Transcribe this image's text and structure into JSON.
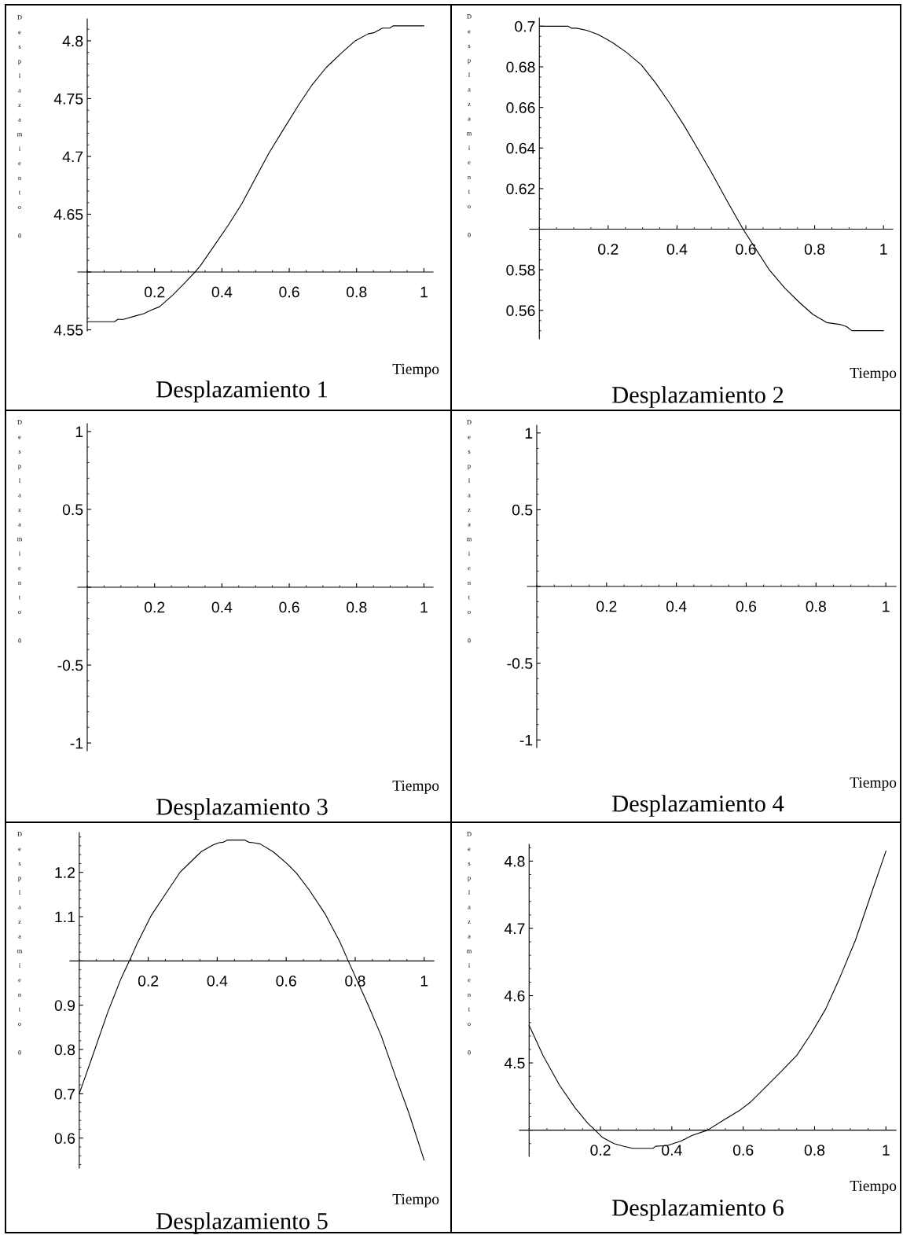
{
  "chart_data": [
    {
      "type": "line",
      "title": "Desplazamiento 1",
      "xlabel": "Tiempo",
      "ylabel": "Desplazamiento θ",
      "x": [
        0,
        0.081,
        0.091,
        0.108,
        0.143,
        0.168,
        0.19,
        0.215,
        0.254,
        0.288,
        0.32,
        0.335,
        0.373,
        0.42,
        0.459,
        0.501,
        0.54,
        0.582,
        0.629,
        0.668,
        0.71,
        0.757,
        0.796,
        0.834,
        0.851,
        0.877,
        0.898,
        0.909,
        1
      ],
      "series": [
        {
          "color": "#000000",
          "values": [
            4.557,
            4.557,
            4.559,
            4.559,
            4.562,
            4.564,
            4.567,
            4.57,
            4.58,
            4.59,
            4.6,
            4.605,
            4.621,
            4.641,
            4.659,
            4.682,
            4.703,
            4.723,
            4.745,
            4.762,
            4.777,
            4.79,
            4.8,
            4.806,
            4.807,
            4.811,
            4.811,
            4.813,
            4.813
          ]
        }
      ],
      "xlim": [
        -0.028,
        1.027
      ],
      "ylim": [
        4.549,
        4.819
      ],
      "xticks": [
        0.2,
        0.4,
        0.6,
        0.8,
        1
      ],
      "yticks": [
        4.55,
        {
          "value": 4.6,
          "label": null
        },
        4.65,
        4.7,
        4.75,
        4.8
      ]
    },
    {
      "type": "line",
      "title": "Desplazamiento 2",
      "xlabel": "Tiempo",
      "ylabel": "Desplazamiento θ",
      "x": [
        0,
        0.083,
        0.094,
        0.108,
        0.137,
        0.17,
        0.212,
        0.254,
        0.296,
        0.338,
        0.379,
        0.421,
        0.459,
        0.5,
        0.542,
        0.592,
        0.63,
        0.668,
        0.713,
        0.755,
        0.795,
        0.835,
        0.876,
        0.893,
        0.908,
        1
      ],
      "series": [
        {
          "color": "#000000",
          "values": [
            0.7,
            0.7,
            0.699,
            0.699,
            0.698,
            0.696,
            0.692,
            0.687,
            0.681,
            0.672,
            0.662,
            0.651,
            0.64,
            0.628,
            0.615,
            0.6,
            0.59,
            0.58,
            0.571,
            0.564,
            0.558,
            0.554,
            0.553,
            0.552,
            0.55,
            0.55
          ]
        }
      ],
      "xlim": [
        -0.028,
        1.027
      ],
      "ylim": [
        0.546,
        0.704
      ],
      "xticks": [
        0.2,
        0.4,
        0.6,
        0.8,
        1
      ],
      "yticks": [
        0.56,
        0.58,
        {
          "value": 0.6,
          "label": null
        },
        0.62,
        0.64,
        0.66,
        0.68,
        0.7
      ]
    },
    {
      "type": "line",
      "title": "Desplazamiento 3",
      "xlabel": "Tiempo",
      "ylabel": "Desplazamiento θ",
      "xlim": [
        -0.028,
        1.027
      ],
      "ylim": [
        -1.05,
        1.05
      ],
      "xticks": [
        0.2,
        0.4,
        0.6,
        0.8,
        1
      ],
      "yticks": [
        -1,
        -0.5,
        {
          "value": 0,
          "label": null
        },
        0.5,
        1
      ]
    },
    {
      "type": "line",
      "title": "Desplazamiento 4",
      "xlabel": "Tiempo",
      "ylabel": "Desplazamiento θ",
      "xlim": [
        -0.027,
        1.029
      ],
      "ylim": [
        -1.05,
        1.05
      ],
      "xticks": [
        0.2,
        0.4,
        0.6,
        0.8,
        1
      ],
      "yticks": [
        -1,
        -0.5,
        {
          "value": 0,
          "label": null
        },
        0.5,
        1
      ]
    },
    {
      "type": "line",
      "title": "Desplazamiento 5",
      "xlabel": "Tiempo",
      "ylabel": "Desplazamiento θ",
      "x": [
        0,
        0.038,
        0.083,
        0.121,
        0.15,
        0.167,
        0.209,
        0.25,
        0.292,
        0.317,
        0.354,
        0.388,
        0.405,
        0.417,
        0.43,
        0.48,
        0.492,
        0.505,
        0.525,
        0.563,
        0.605,
        0.63,
        0.667,
        0.713,
        0.755,
        0.78,
        0.813,
        0.838,
        0.876,
        0.917,
        0.955,
        1
      ],
      "series": [
        {
          "color": "#000000",
          "values": [
            0.7,
            0.784,
            0.885,
            0.96,
            1.008,
            1.038,
            1.103,
            1.151,
            1.2,
            1.219,
            1.247,
            1.262,
            1.267,
            1.268,
            1.273,
            1.273,
            1.268,
            1.267,
            1.264,
            1.246,
            1.218,
            1.198,
            1.16,
            1.106,
            1.044,
            1.0,
            0.943,
            0.9,
            0.83,
            0.739,
            0.658,
            0.55
          ]
        }
      ],
      "xlim": [
        -0.027,
        1.028
      ],
      "ylim": [
        0.532,
        1.29
      ],
      "xticks": [
        0.2,
        0.4,
        0.6,
        0.8,
        1
      ],
      "yticks": [
        0.6,
        0.7,
        0.8,
        0.9,
        {
          "value": 1,
          "label": null
        },
        1.1,
        1.2
      ]
    },
    {
      "type": "line",
      "title": "Desplazamiento 6",
      "xlabel": "Tiempo",
      "ylabel": "Desplazamiento θ",
      "x": [
        0,
        0.04,
        0.085,
        0.129,
        0.165,
        0.185,
        0.206,
        0.238,
        0.266,
        0.29,
        0.347,
        0.355,
        0.387,
        0.427,
        0.456,
        0.5,
        0.548,
        0.589,
        0.621,
        0.661,
        0.706,
        0.75,
        0.79,
        0.831,
        0.871,
        0.915,
        0.956,
        1
      ],
      "series": [
        {
          "color": "#000000",
          "values": [
            4.556,
            4.51,
            4.467,
            4.433,
            4.41,
            4.4,
            4.389,
            4.38,
            4.376,
            4.373,
            4.373,
            4.376,
            4.377,
            4.384,
            4.392,
            4.4,
            4.416,
            4.429,
            4.442,
            4.463,
            4.487,
            4.511,
            4.543,
            4.58,
            4.627,
            4.683,
            4.747,
            4.815
          ]
        }
      ],
      "xlim": [
        -0.027,
        1.028
      ],
      "ylim": [
        4.361,
        4.825
      ],
      "xticks": [
        0.2,
        0.4,
        0.6,
        0.8,
        1
      ],
      "yticks": [
        {
          "value": 4.4,
          "label": null
        },
        4.5,
        4.6,
        4.7,
        4.8
      ]
    }
  ]
}
